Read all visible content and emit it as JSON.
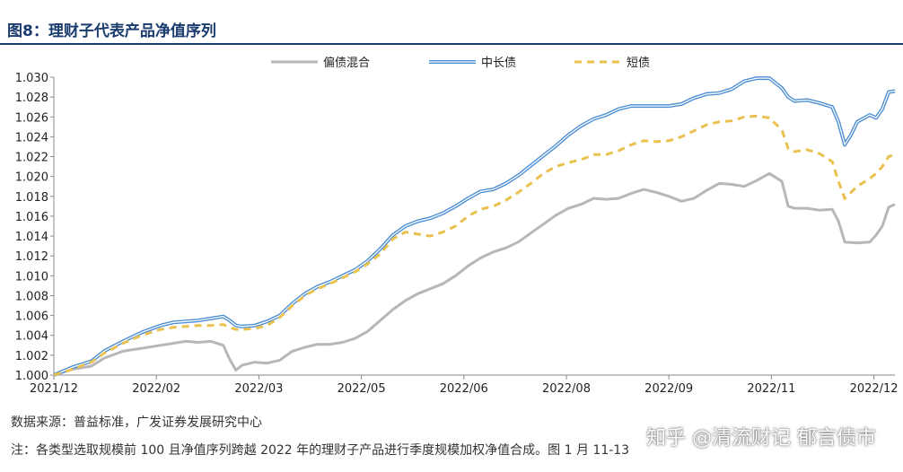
{
  "figure": {
    "title": "图8：理财子代表产品净值序列",
    "source": "数据来源：普益标准，广发证券发展研究中心",
    "note": "注：各类型选取规模前 100 且净值序列跨越 2022 年的理财子产品进行季度规模加权净值合成。图 1 月 11-13",
    "watermark": "知乎 @清流财记 郁言债市"
  },
  "chart_data": {
    "type": "line",
    "xlabel": "",
    "ylabel": "",
    "ylim": [
      1.0,
      1.03
    ],
    "yticks": [
      "1.000",
      "1.002",
      "1.004",
      "1.006",
      "1.008",
      "1.010",
      "1.012",
      "1.014",
      "1.016",
      "1.018",
      "1.020",
      "1.022",
      "1.024",
      "1.026",
      "1.028",
      "1.030"
    ],
    "xticks": [
      "2021/12",
      "2022/02",
      "2022/03",
      "2022/05",
      "2022/06",
      "2022/08",
      "2022/09",
      "2022/11",
      "2022/12"
    ],
    "legend_position": "top-center",
    "series": [
      {
        "name": "偏债混合",
        "color": "#b7b7b7",
        "style": "solid",
        "points": [
          [
            0,
            1.0
          ],
          [
            3,
            1.0006
          ],
          [
            6,
            1.0009
          ],
          [
            8,
            1.0017
          ],
          [
            11,
            1.0024
          ],
          [
            14,
            1.0027
          ],
          [
            17,
            1.003
          ],
          [
            19,
            1.0032
          ],
          [
            21,
            1.0034
          ],
          [
            23,
            1.0033
          ],
          [
            25,
            1.0034
          ],
          [
            27,
            1.003
          ],
          [
            28,
            1.0016
          ],
          [
            29,
            1.0005
          ],
          [
            30,
            1.001
          ],
          [
            32,
            1.0013
          ],
          [
            34,
            1.0012
          ],
          [
            36,
            1.0015
          ],
          [
            38,
            1.0024
          ],
          [
            40,
            1.0028
          ],
          [
            42,
            1.0031
          ],
          [
            44,
            1.0031
          ],
          [
            46,
            1.0033
          ],
          [
            48,
            1.0037
          ],
          [
            50,
            1.0044
          ],
          [
            52,
            1.0055
          ],
          [
            54,
            1.0066
          ],
          [
            56,
            1.0075
          ],
          [
            58,
            1.0082
          ],
          [
            60,
            1.0087
          ],
          [
            62,
            1.0092
          ],
          [
            64,
            1.01
          ],
          [
            66,
            1.011
          ],
          [
            68,
            1.0118
          ],
          [
            70,
            1.0124
          ],
          [
            72,
            1.0128
          ],
          [
            74,
            1.0134
          ],
          [
            76,
            1.0143
          ],
          [
            78,
            1.0152
          ],
          [
            80,
            1.0161
          ],
          [
            82,
            1.0168
          ],
          [
            84,
            1.0172
          ],
          [
            86,
            1.0178
          ],
          [
            88,
            1.0177
          ],
          [
            90,
            1.0178
          ],
          [
            92,
            1.0183
          ],
          [
            94,
            1.0187
          ],
          [
            96,
            1.0184
          ],
          [
            98,
            1.018
          ],
          [
            100,
            1.0175
          ],
          [
            102,
            1.0178
          ],
          [
            104,
            1.0186
          ],
          [
            106,
            1.0193
          ],
          [
            108,
            1.0192
          ],
          [
            110,
            1.019
          ],
          [
            112,
            1.0196
          ],
          [
            114,
            1.0203
          ],
          [
            116,
            1.0195
          ],
          [
            117,
            1.017
          ],
          [
            118,
            1.0168
          ],
          [
            120,
            1.0168
          ],
          [
            122,
            1.0166
          ],
          [
            124,
            1.0167
          ],
          [
            125,
            1.0155
          ],
          [
            126,
            1.0134
          ],
          [
            128,
            1.0133
          ],
          [
            130,
            1.0134
          ],
          [
            131,
            1.0141
          ],
          [
            132,
            1.015
          ],
          [
            133,
            1.0169
          ],
          [
            134,
            1.0172
          ]
        ]
      },
      {
        "name": "中长债",
        "color": "#4a8dd4",
        "style": "double",
        "points": [
          [
            0,
            1.0
          ],
          [
            3,
            1.0008
          ],
          [
            6,
            1.0014
          ],
          [
            8,
            1.0024
          ],
          [
            11,
            1.0034
          ],
          [
            14,
            1.0043
          ],
          [
            17,
            1.005
          ],
          [
            19,
            1.0053
          ],
          [
            21,
            1.0054
          ],
          [
            23,
            1.0055
          ],
          [
            25,
            1.0057
          ],
          [
            27,
            1.0059
          ],
          [
            28,
            1.0055
          ],
          [
            29,
            1.005
          ],
          [
            30,
            1.0049
          ],
          [
            32,
            1.005
          ],
          [
            34,
            1.0054
          ],
          [
            36,
            1.006
          ],
          [
            38,
            1.0072
          ],
          [
            40,
            1.0082
          ],
          [
            42,
            1.0089
          ],
          [
            44,
            1.0094
          ],
          [
            46,
            1.01
          ],
          [
            48,
            1.0106
          ],
          [
            50,
            1.0115
          ],
          [
            52,
            1.0127
          ],
          [
            54,
            1.0141
          ],
          [
            56,
            1.015
          ],
          [
            58,
            1.0155
          ],
          [
            60,
            1.0158
          ],
          [
            62,
            1.0163
          ],
          [
            64,
            1.017
          ],
          [
            66,
            1.0178
          ],
          [
            68,
            1.0185
          ],
          [
            70,
            1.0187
          ],
          [
            72,
            1.0193
          ],
          [
            74,
            1.0201
          ],
          [
            76,
            1.0211
          ],
          [
            78,
            1.0221
          ],
          [
            80,
            1.0231
          ],
          [
            82,
            1.0242
          ],
          [
            84,
            1.0251
          ],
          [
            86,
            1.0258
          ],
          [
            88,
            1.0262
          ],
          [
            90,
            1.0268
          ],
          [
            92,
            1.0271
          ],
          [
            94,
            1.0271
          ],
          [
            96,
            1.0271
          ],
          [
            98,
            1.0271
          ],
          [
            100,
            1.0273
          ],
          [
            102,
            1.0279
          ],
          [
            104,
            1.0283
          ],
          [
            106,
            1.0284
          ],
          [
            108,
            1.0288
          ],
          [
            110,
            1.0296
          ],
          [
            112,
            1.0299
          ],
          [
            114,
            1.0299
          ],
          [
            116,
            1.0289
          ],
          [
            117,
            1.028
          ],
          [
            118,
            1.0276
          ],
          [
            120,
            1.0277
          ],
          [
            122,
            1.0274
          ],
          [
            124,
            1.027
          ],
          [
            125,
            1.0255
          ],
          [
            126,
            1.0232
          ],
          [
            127,
            1.0242
          ],
          [
            128,
            1.0255
          ],
          [
            130,
            1.0262
          ],
          [
            131,
            1.0259
          ],
          [
            132,
            1.0268
          ],
          [
            133,
            1.0285
          ],
          [
            134,
            1.0286
          ]
        ]
      },
      {
        "name": "短债",
        "color": "#e8c14e",
        "style": "dashed",
        "points": [
          [
            0,
            1.0
          ],
          [
            3,
            1.0006
          ],
          [
            6,
            1.0013
          ],
          [
            8,
            1.0022
          ],
          [
            11,
            1.0032
          ],
          [
            14,
            1.004
          ],
          [
            17,
            1.0046
          ],
          [
            19,
            1.0048
          ],
          [
            21,
            1.0049
          ],
          [
            23,
            1.005
          ],
          [
            25,
            1.005
          ],
          [
            27,
            1.0051
          ],
          [
            28,
            1.0048
          ],
          [
            29,
            1.0046
          ],
          [
            30,
            1.0046
          ],
          [
            32,
            1.0047
          ],
          [
            34,
            1.005
          ],
          [
            36,
            1.0058
          ],
          [
            38,
            1.007
          ],
          [
            40,
            1.008
          ],
          [
            42,
            1.0087
          ],
          [
            44,
            1.0092
          ],
          [
            46,
            1.0098
          ],
          [
            48,
            1.0104
          ],
          [
            50,
            1.0112
          ],
          [
            52,
            1.0122
          ],
          [
            54,
            1.0137
          ],
          [
            56,
            1.0144
          ],
          [
            58,
            1.0142
          ],
          [
            60,
            1.014
          ],
          [
            62,
            1.0144
          ],
          [
            64,
            1.015
          ],
          [
            66,
            1.016
          ],
          [
            68,
            1.0167
          ],
          [
            70,
            1.017
          ],
          [
            72,
            1.0176
          ],
          [
            74,
            1.0184
          ],
          [
            76,
            1.0193
          ],
          [
            78,
            1.0203
          ],
          [
            80,
            1.021
          ],
          [
            82,
            1.0214
          ],
          [
            84,
            1.0217
          ],
          [
            86,
            1.0222
          ],
          [
            88,
            1.0222
          ],
          [
            90,
            1.0226
          ],
          [
            92,
            1.0232
          ],
          [
            94,
            1.0236
          ],
          [
            96,
            1.0235
          ],
          [
            98,
            1.0236
          ],
          [
            100,
            1.024
          ],
          [
            102,
            1.0246
          ],
          [
            104,
            1.0252
          ],
          [
            106,
            1.0255
          ],
          [
            108,
            1.0256
          ],
          [
            110,
            1.026
          ],
          [
            112,
            1.0261
          ],
          [
            114,
            1.0259
          ],
          [
            116,
            1.0247
          ],
          [
            117,
            1.0228
          ],
          [
            118,
            1.0225
          ],
          [
            120,
            1.0227
          ],
          [
            122,
            1.0223
          ],
          [
            124,
            1.0215
          ],
          [
            125,
            1.0195
          ],
          [
            126,
            1.0178
          ],
          [
            127,
            1.0184
          ],
          [
            128,
            1.019
          ],
          [
            130,
            1.0198
          ],
          [
            131,
            1.0203
          ],
          [
            132,
            1.021
          ],
          [
            133,
            1.022
          ],
          [
            134,
            1.0222
          ]
        ]
      }
    ]
  }
}
